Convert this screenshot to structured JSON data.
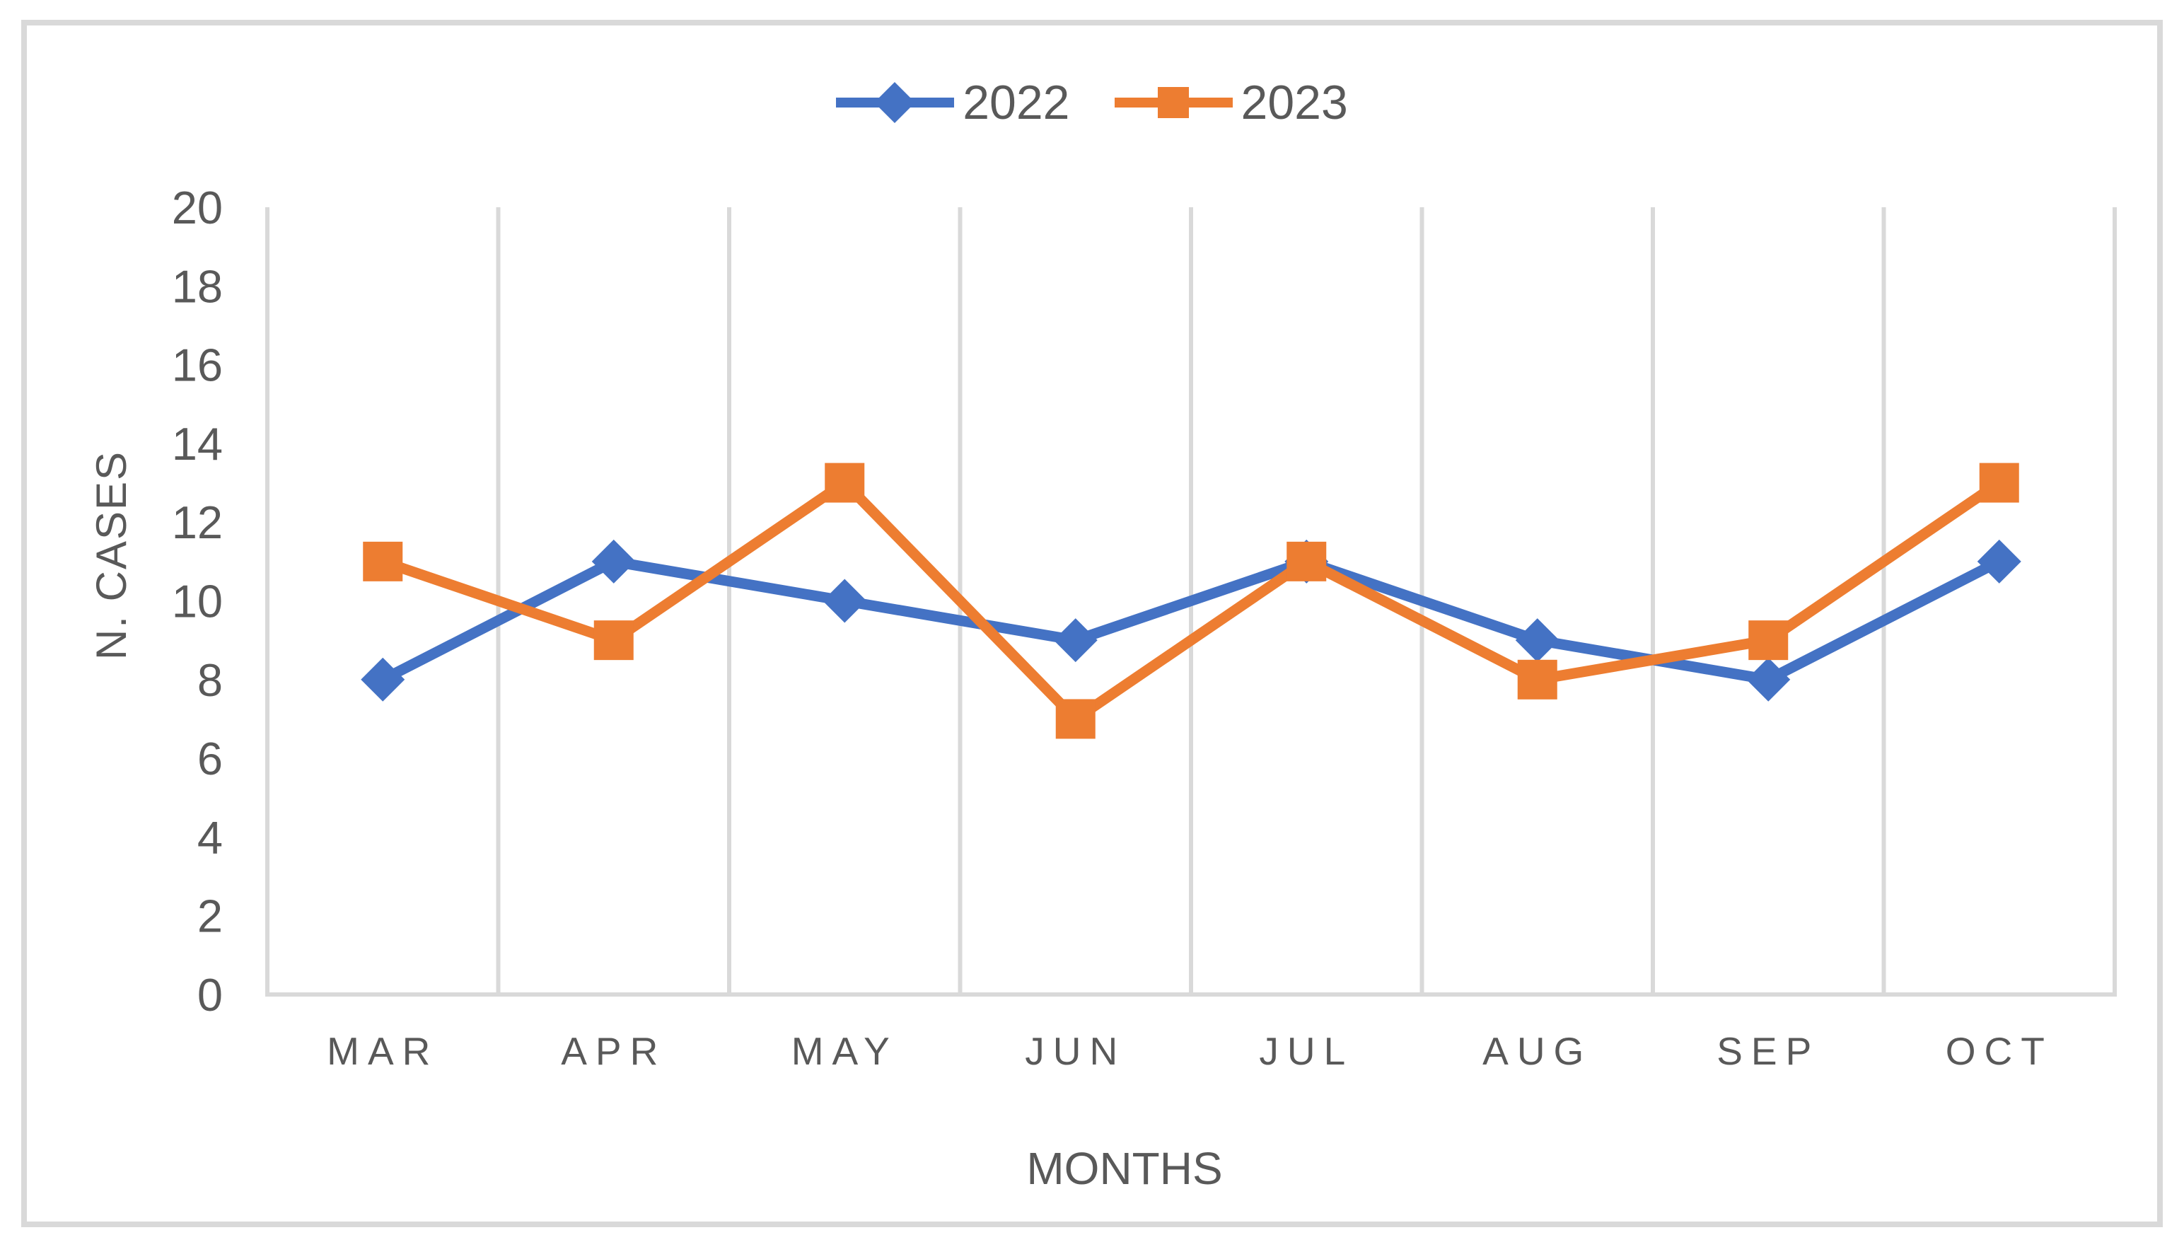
{
  "chart_data": {
    "type": "line",
    "categories": [
      "MAR",
      "APR",
      "MAY",
      "JUN",
      "JUL",
      "AUG",
      "SEP",
      "OCT"
    ],
    "series": [
      {
        "name": "2022",
        "color": "#4472C4",
        "marker": "diamond",
        "values": [
          8,
          11,
          10,
          9,
          11,
          9,
          8,
          11
        ]
      },
      {
        "name": "2023",
        "color": "#ED7D31",
        "marker": "square",
        "values": [
          11,
          9,
          13,
          7,
          11,
          8,
          9,
          13
        ]
      }
    ],
    "title": "",
    "xlabel": "MONTHS",
    "ylabel": "N. CASES",
    "ylim": [
      0,
      20
    ],
    "yticks": [
      0,
      2,
      4,
      6,
      8,
      10,
      12,
      14,
      16,
      18,
      20
    ],
    "grid": "vertical-only",
    "legend_position": "top-center",
    "style": {
      "grid_color": "#D9D9D9",
      "axis_color": "#D9D9D9",
      "text_color": "#595959",
      "border_color": "#D9D9D9",
      "background": "#FFFFFF"
    }
  },
  "legend": {
    "items": [
      {
        "label": "2022"
      },
      {
        "label": "2023"
      }
    ]
  }
}
